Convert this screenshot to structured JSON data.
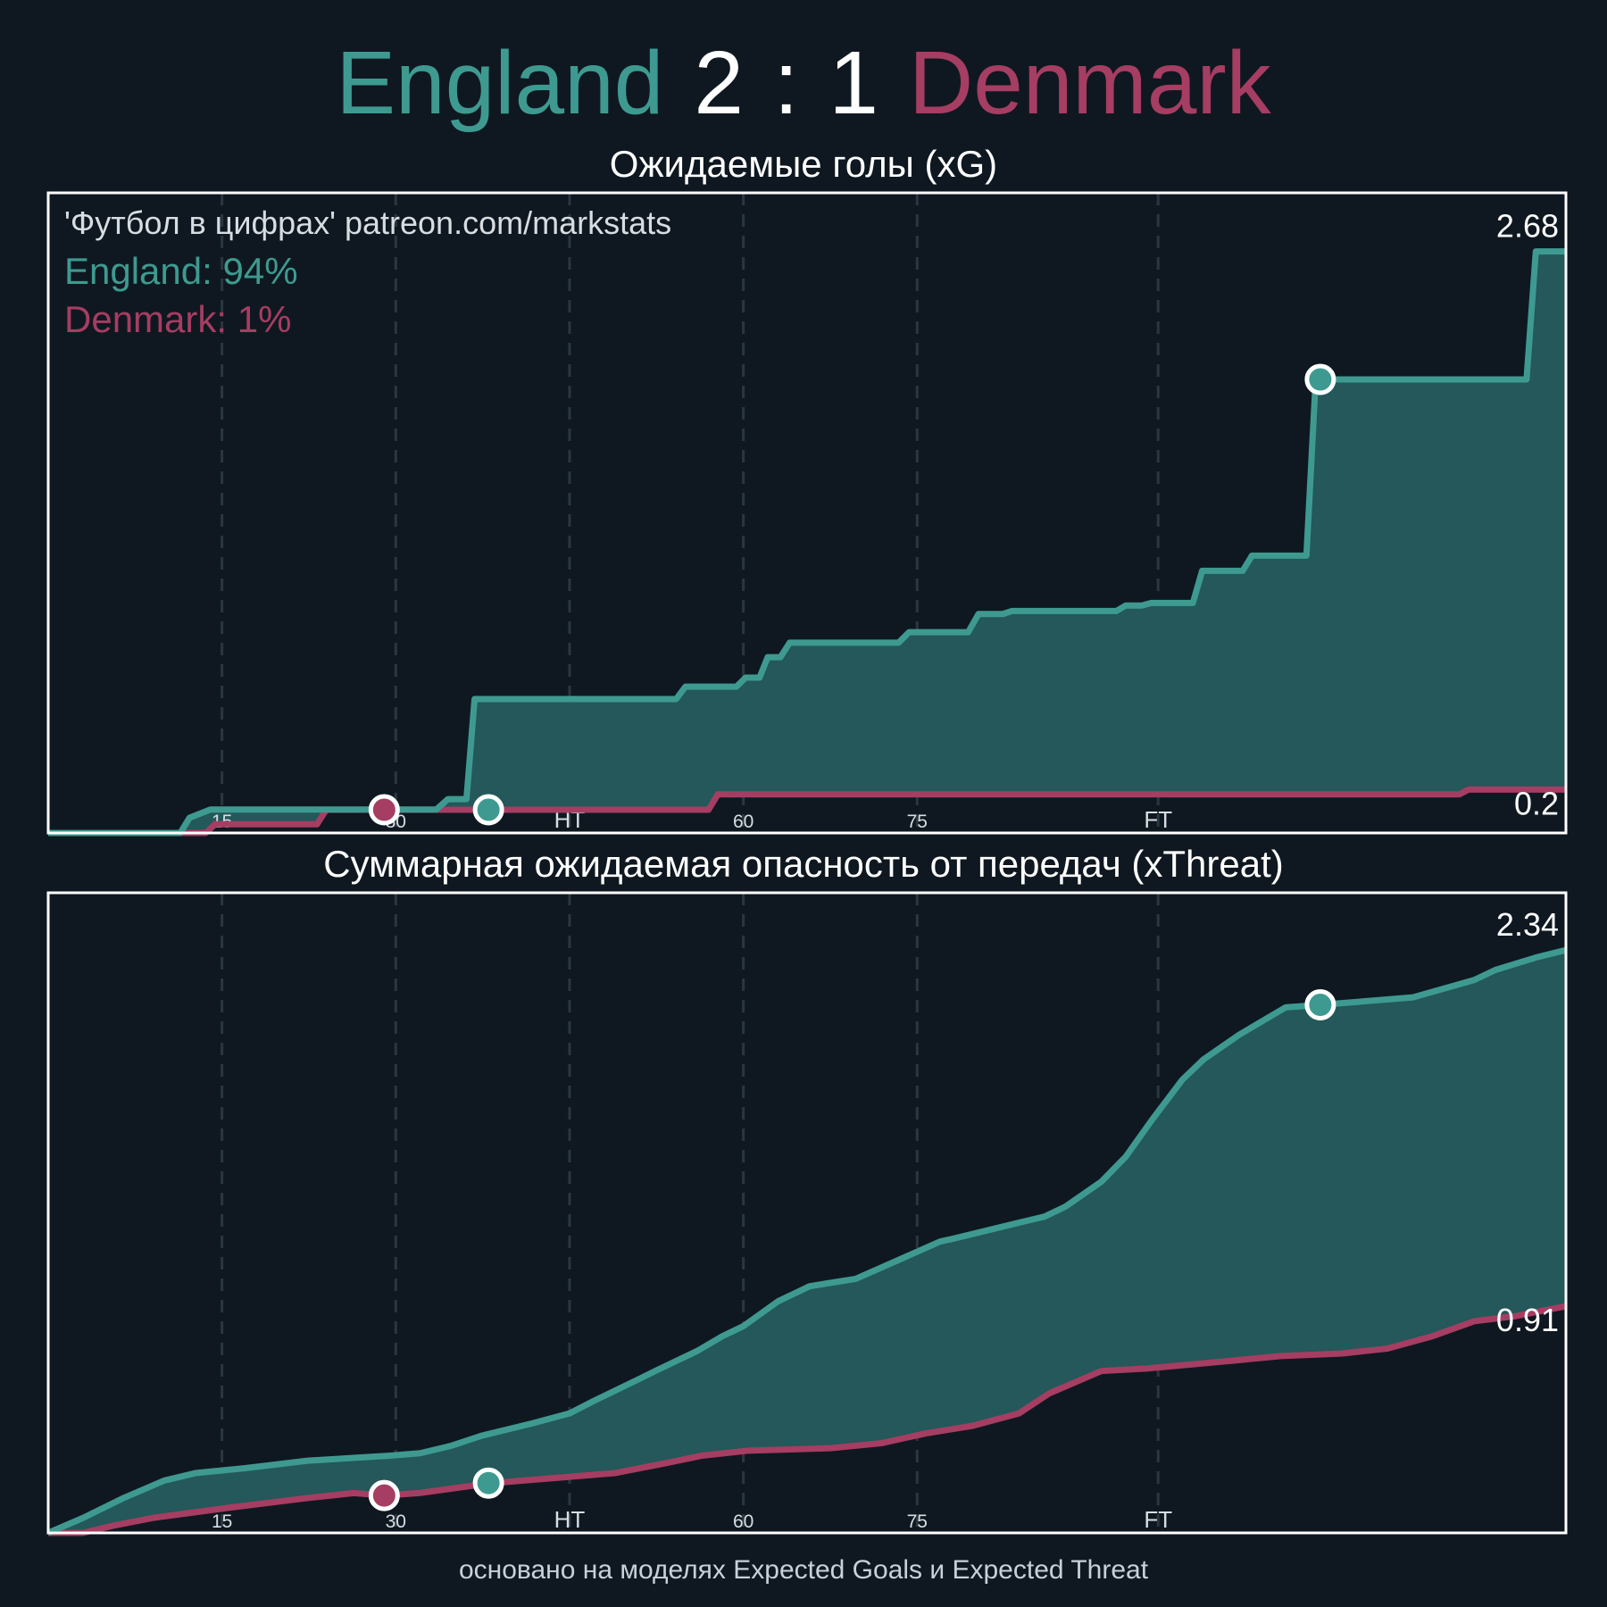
{
  "header": {
    "home_team": "England",
    "home_score": "2",
    "separator": ":",
    "away_score": "1",
    "away_team": "Denmark"
  },
  "colors": {
    "background": "#0f1820",
    "home": "#3e9a90",
    "home_fill": "#24585a",
    "away": "#a63d62",
    "grid": "#2a3640",
    "frame": "#ffffff"
  },
  "footer": "основано на моделях Expected Goals и Expected Threat",
  "chart_data": [
    {
      "type": "line",
      "title": "Ожидаемые голы (xG)",
      "annotation": "'Футбол в цифрах' patreon.com/markstats",
      "legend": [
        {
          "team": "England",
          "text": "England: 94%"
        },
        {
          "team": "Denmark",
          "text": "Denmark: 1%"
        }
      ],
      "legend_position": "top-left",
      "step": true,
      "xlim": [
        0,
        131
      ],
      "ylim": [
        0,
        2.95
      ],
      "xticks": [
        {
          "value": 15,
          "label": "15"
        },
        {
          "value": 30,
          "label": "30"
        },
        {
          "value": 45,
          "label": "HT"
        },
        {
          "value": 60,
          "label": "60"
        },
        {
          "value": 75,
          "label": "75"
        },
        {
          "value": 95.8,
          "label": "FT"
        }
      ],
      "grid": "vertical dashed",
      "end_labels": {
        "England": "2.68",
        "Denmark": "0.2"
      },
      "series": [
        {
          "name": "England",
          "x": [
            0,
            11.4,
            12.2,
            14,
            33.5,
            34.5,
            36.1,
            36.8,
            54.2,
            55,
            59.4,
            60.2,
            61.4,
            62.1,
            63.2,
            64,
            73.4,
            74.3,
            79.4,
            80.3,
            82.4,
            83.2,
            92.2,
            93,
            94.4,
            95.2,
            98.8,
            99.6,
            103.1,
            103.9,
            108.6,
            109.4,
            127.6,
            128.4,
            131
          ],
          "y": [
            0,
            0,
            0.07,
            0.108,
            0.108,
            0.156,
            0.156,
            0.617,
            0.617,
            0.674,
            0.674,
            0.716,
            0.716,
            0.81,
            0.81,
            0.877,
            0.877,
            0.925,
            0.925,
            1.009,
            1.009,
            1.023,
            1.023,
            1.048,
            1.048,
            1.06,
            1.06,
            1.208,
            1.208,
            1.278,
            1.278,
            2.09,
            2.09,
            2.68,
            2.68
          ]
        },
        {
          "name": "Denmark",
          "x": [
            0,
            13.6,
            14.4,
            23.2,
            24,
            57,
            57.8,
            121.8,
            122.6,
            131
          ],
          "y": [
            0,
            0,
            0.04,
            0.04,
            0.107,
            0.107,
            0.178,
            0.178,
            0.2,
            0.2
          ]
        }
      ],
      "goals": [
        {
          "team": "Denmark",
          "x": 29,
          "y": 0.107
        },
        {
          "team": "England",
          "x": 38,
          "y": 0.107
        },
        {
          "team": "England",
          "x": 109.8,
          "y": 2.09
        }
      ]
    },
    {
      "type": "area",
      "title": "Суммарная ожидаемая опасность от передач (xThreat)",
      "xlim": [
        0,
        131
      ],
      "ylim": [
        0,
        2.57
      ],
      "xticks": [
        {
          "value": 15,
          "label": "15"
        },
        {
          "value": 30,
          "label": "30"
        },
        {
          "value": 45,
          "label": "HT"
        },
        {
          "value": 60,
          "label": "60"
        },
        {
          "value": 75,
          "label": "75"
        },
        {
          "value": 95.8,
          "label": "FT"
        }
      ],
      "grid": "vertical dashed",
      "end_labels": {
        "England": "2.34",
        "Denmark": "0.91"
      },
      "series": [
        {
          "name": "England",
          "x": [
            0,
            3,
            6.5,
            10,
            12.7,
            17,
            22.4,
            29.5,
            32.1,
            34.8,
            37.4,
            41.8,
            45,
            47.1,
            51.1,
            52.4,
            56,
            58.2,
            60,
            63,
            65.7,
            67,
            69.7,
            73.6,
            77,
            78,
            84.2,
            86,
            87.8,
            90.9,
            93,
            95.3,
            97.9,
            99.7,
            102.8,
            106.8,
            109.8,
            117.8,
            123.1,
            124.9,
            128.4,
            131
          ],
          "y": [
            0,
            0.06,
            0.14,
            0.21,
            0.24,
            0.26,
            0.29,
            0.31,
            0.32,
            0.35,
            0.39,
            0.44,
            0.48,
            0.53,
            0.62,
            0.65,
            0.73,
            0.79,
            0.83,
            0.93,
            0.99,
            1.0,
            1.02,
            1.1,
            1.17,
            1.18,
            1.25,
            1.27,
            1.31,
            1.41,
            1.51,
            1.66,
            1.82,
            1.9,
            2.0,
            2.11,
            2.12,
            2.15,
            2.22,
            2.26,
            2.31,
            2.34
          ]
        },
        {
          "name": "Denmark",
          "x": [
            0,
            3,
            5.7,
            9,
            15.4,
            22.4,
            26.4,
            29,
            32,
            38.3,
            43.6,
            48.9,
            53.3,
            56.4,
            60.4,
            67.5,
            71.9,
            75.8,
            79.8,
            83.8,
            86.4,
            90.9,
            94.8,
            101.9,
            106.4,
            111.6,
            115.6,
            119.5,
            123.1,
            126.6,
            131
          ],
          "y": [
            0,
            0,
            0.03,
            0.06,
            0.1,
            0.14,
            0.16,
            0.15,
            0.16,
            0.2,
            0.22,
            0.24,
            0.28,
            0.31,
            0.33,
            0.34,
            0.36,
            0.4,
            0.43,
            0.48,
            0.56,
            0.65,
            0.66,
            0.69,
            0.71,
            0.72,
            0.74,
            0.79,
            0.85,
            0.87,
            0.91
          ]
        }
      ],
      "goals": [
        {
          "team": "Denmark",
          "x": 29,
          "y": 0.15
        },
        {
          "team": "England",
          "x": 38,
          "y": 0.2
        },
        {
          "team": "England",
          "x": 109.8,
          "y": 2.12
        }
      ]
    }
  ]
}
